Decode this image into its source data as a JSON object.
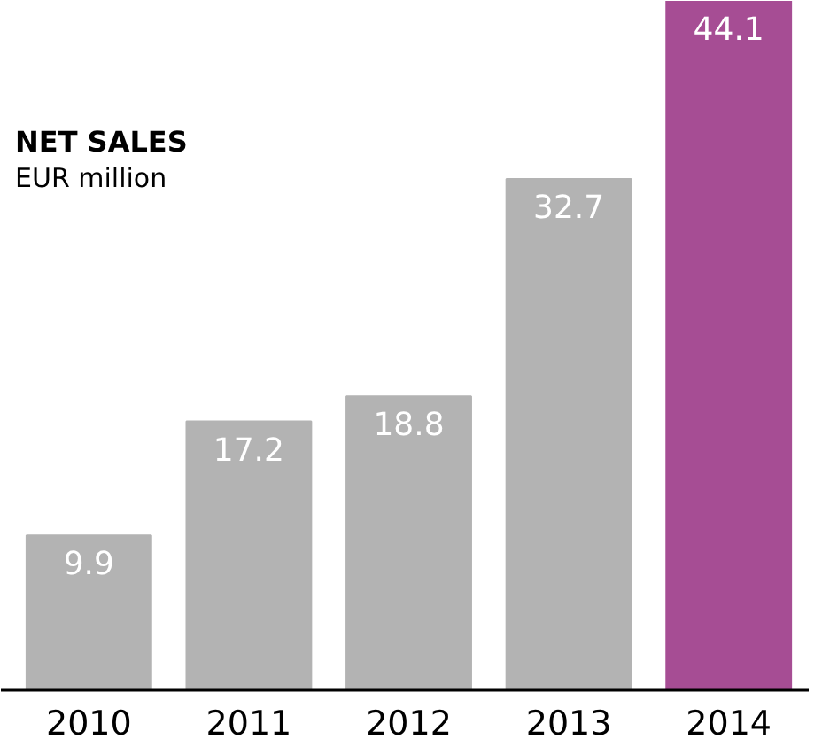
{
  "chart_data": {
    "type": "bar",
    "title": "NET SALES",
    "subtitle": "EUR million",
    "categories": [
      "2010",
      "2011",
      "2012",
      "2013",
      "2014"
    ],
    "values": [
      9.9,
      17.2,
      18.8,
      32.7,
      44.1
    ],
    "colors": [
      "#b3b3b3",
      "#b3b3b3",
      "#b3b3b3",
      "#b3b3b3",
      "#a64d94"
    ],
    "data_labels": true
  }
}
